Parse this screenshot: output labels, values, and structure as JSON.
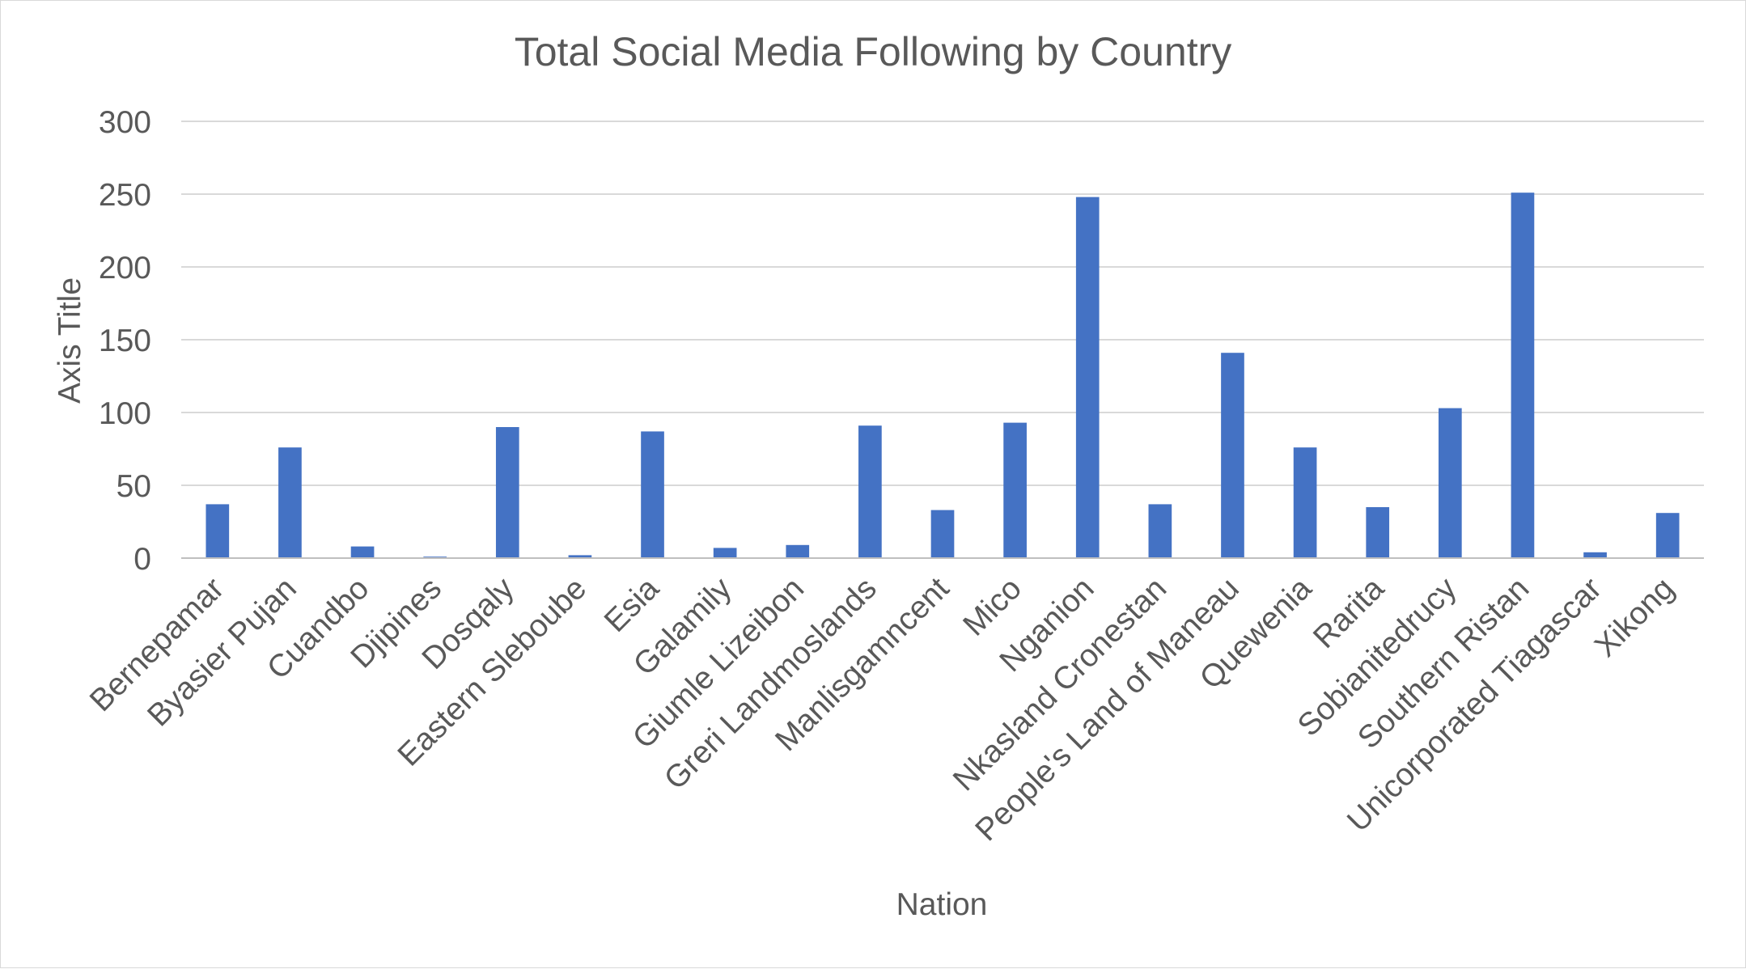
{
  "chart_data": {
    "type": "bar",
    "title": "Total Social Media Following by Country",
    "xlabel": "Nation",
    "ylabel": "Axis Title",
    "ylim": [
      0,
      300
    ],
    "yticks": [
      0,
      50,
      100,
      150,
      200,
      250,
      300
    ],
    "grid": true,
    "legend": "none",
    "bar_color": "#4472C4",
    "categories": [
      "Bernepamar",
      "Byasier Pujan",
      "Cuandbo",
      "Djipines",
      "Dosqaly",
      "Eastern Sleboube",
      "Esia",
      "Galamily",
      "Giumle Lizeibon",
      "Greri Landmoslands",
      "Manlisgamncent",
      "Mico",
      "Nganion",
      "Nkasland Cronestan",
      "People's Land of Maneau",
      "Quewenia",
      "Rarita",
      "Sobianitedrucy",
      "Southern Ristan",
      "Unicorporated Tiagascar",
      "Xikong"
    ],
    "values": [
      37,
      76,
      8,
      1,
      90,
      2,
      87,
      7,
      9,
      91,
      33,
      93,
      248,
      37,
      141,
      76,
      35,
      103,
      251,
      4,
      31
    ]
  }
}
